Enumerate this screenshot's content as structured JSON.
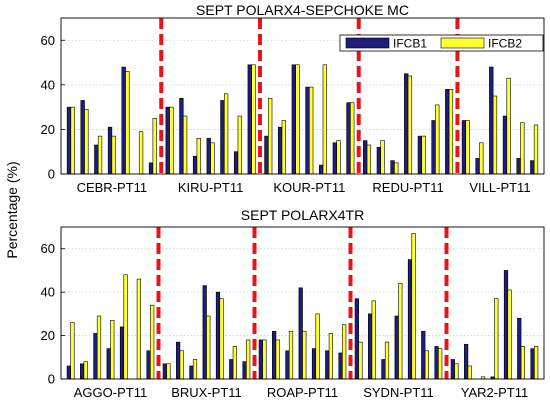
{
  "figure": {
    "ylabel": "Percentage (%)"
  },
  "chart_data": [
    {
      "type": "bar",
      "title": "SEPT POLARX4-SEPCHOKE MC",
      "ylabel": "Percentage (%)",
      "ylim": [
        0,
        70
      ],
      "yticks": [
        0,
        20,
        40,
        60
      ],
      "grid": true,
      "legend_placement": "top-right",
      "groups": [
        "CEBR-PT11",
        "KIRU-PT11",
        "KOUR-PT11",
        "REDU-PT11",
        "VILL-PT11"
      ],
      "series": [
        {
          "name": "IFCB1",
          "color": "#1f1d7a",
          "values": [
            [
              30,
              33,
              13,
              21,
              48,
              0,
              5
            ],
            [
              30,
              34,
              8,
              16,
              33,
              10,
              49
            ],
            [
              17,
              21,
              49,
              39,
              4,
              14,
              32
            ],
            [
              15,
              12,
              6,
              45,
              17,
              24,
              38
            ],
            [
              24,
              7,
              48,
              26,
              7,
              6
            ]
          ]
        },
        {
          "name": "IFCB2",
          "color": "#ffff33",
          "values": [
            [
              30,
              29,
              17,
              17,
              46,
              19,
              25
            ],
            [
              30,
              26,
              16,
              14,
              36,
              26,
              49
            ],
            [
              34,
              24,
              49,
              39,
              49,
              15,
              32
            ],
            [
              13,
              15,
              5,
              44,
              17,
              31,
              38
            ],
            [
              24,
              14,
              35,
              43,
              23,
              22
            ]
          ]
        }
      ]
    },
    {
      "type": "bar",
      "title": "SEPT POLARX4TR",
      "ylabel": "Percentage (%)",
      "ylim": [
        0,
        70
      ],
      "yticks": [
        0,
        20,
        40,
        60
      ],
      "grid": true,
      "groups": [
        "AGGO-PT11",
        "BRUX-PT11",
        "ROAP-PT11",
        "SYDN-PT11",
        "YAR2-PT11"
      ],
      "series": [
        {
          "name": "IFCB1",
          "color": "#1f1d7a",
          "values": [
            [
              6,
              7,
              21,
              14,
              24,
              0,
              13
            ],
            [
              7,
              17,
              6,
              43,
              40,
              9,
              8
            ],
            [
              18,
              22,
              13,
              42,
              14,
              13,
              12
            ],
            [
              37,
              30,
              9,
              29,
              55,
              22,
              15
            ],
            [
              9,
              16,
              0,
              1,
              50,
              28,
              14
            ]
          ]
        },
        {
          "name": "IFCB2",
          "color": "#ffff33",
          "values": [
            [
              26,
              8,
              29,
              27,
              48,
              46,
              34
            ],
            [
              7,
              13,
              9,
              29,
              37,
              15,
              18
            ],
            [
              18,
              18,
              22,
              22,
              30,
              21,
              25
            ],
            [
              17,
              36,
              17,
              44,
              67,
              13,
              14
            ],
            [
              7,
              6,
              1,
              37,
              41,
              15,
              15
            ]
          ]
        }
      ]
    }
  ]
}
